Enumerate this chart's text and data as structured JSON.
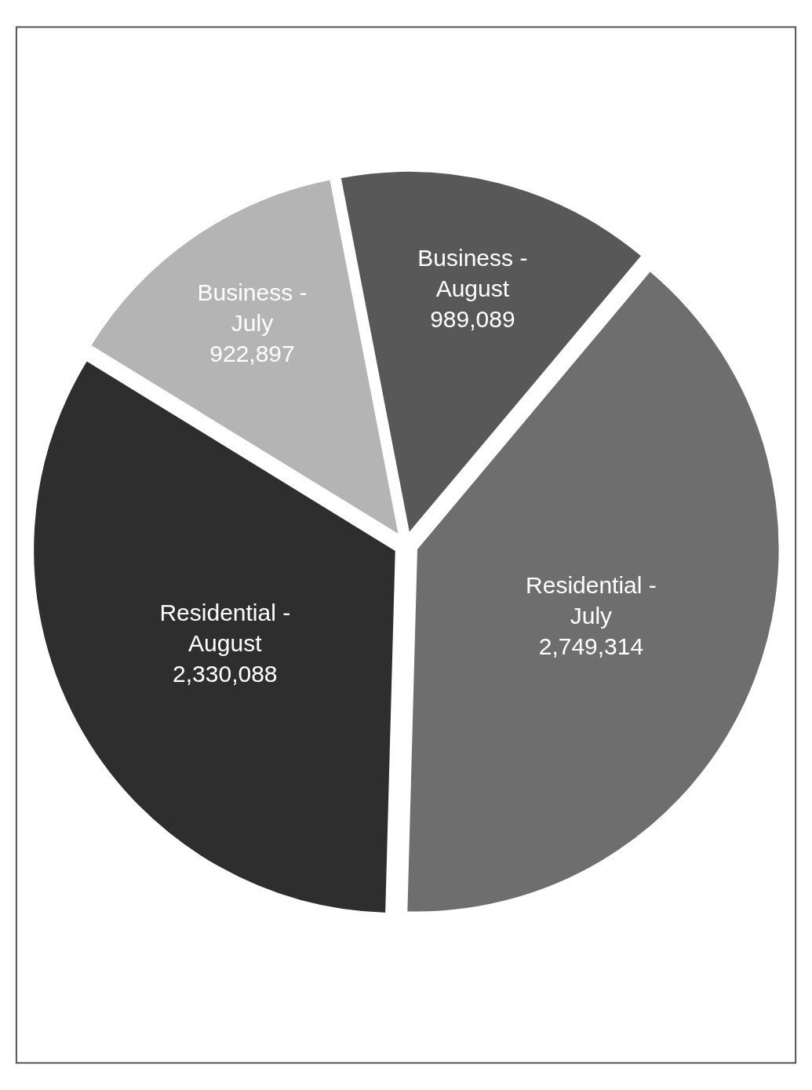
{
  "chart_data": {
    "type": "pie",
    "categories": [
      "Residential - July",
      "Residential - August",
      "Business - July",
      "Business - August"
    ],
    "values": [
      2749314,
      2330088,
      922897,
      989089
    ],
    "colors": [
      "#6e6e6e",
      "#2e2e2e",
      "#b4b4b4",
      "#585858"
    ],
    "value_labels": [
      "2,749,314",
      "2,330,088",
      "922,897",
      "989,089"
    ],
    "legend": false
  }
}
